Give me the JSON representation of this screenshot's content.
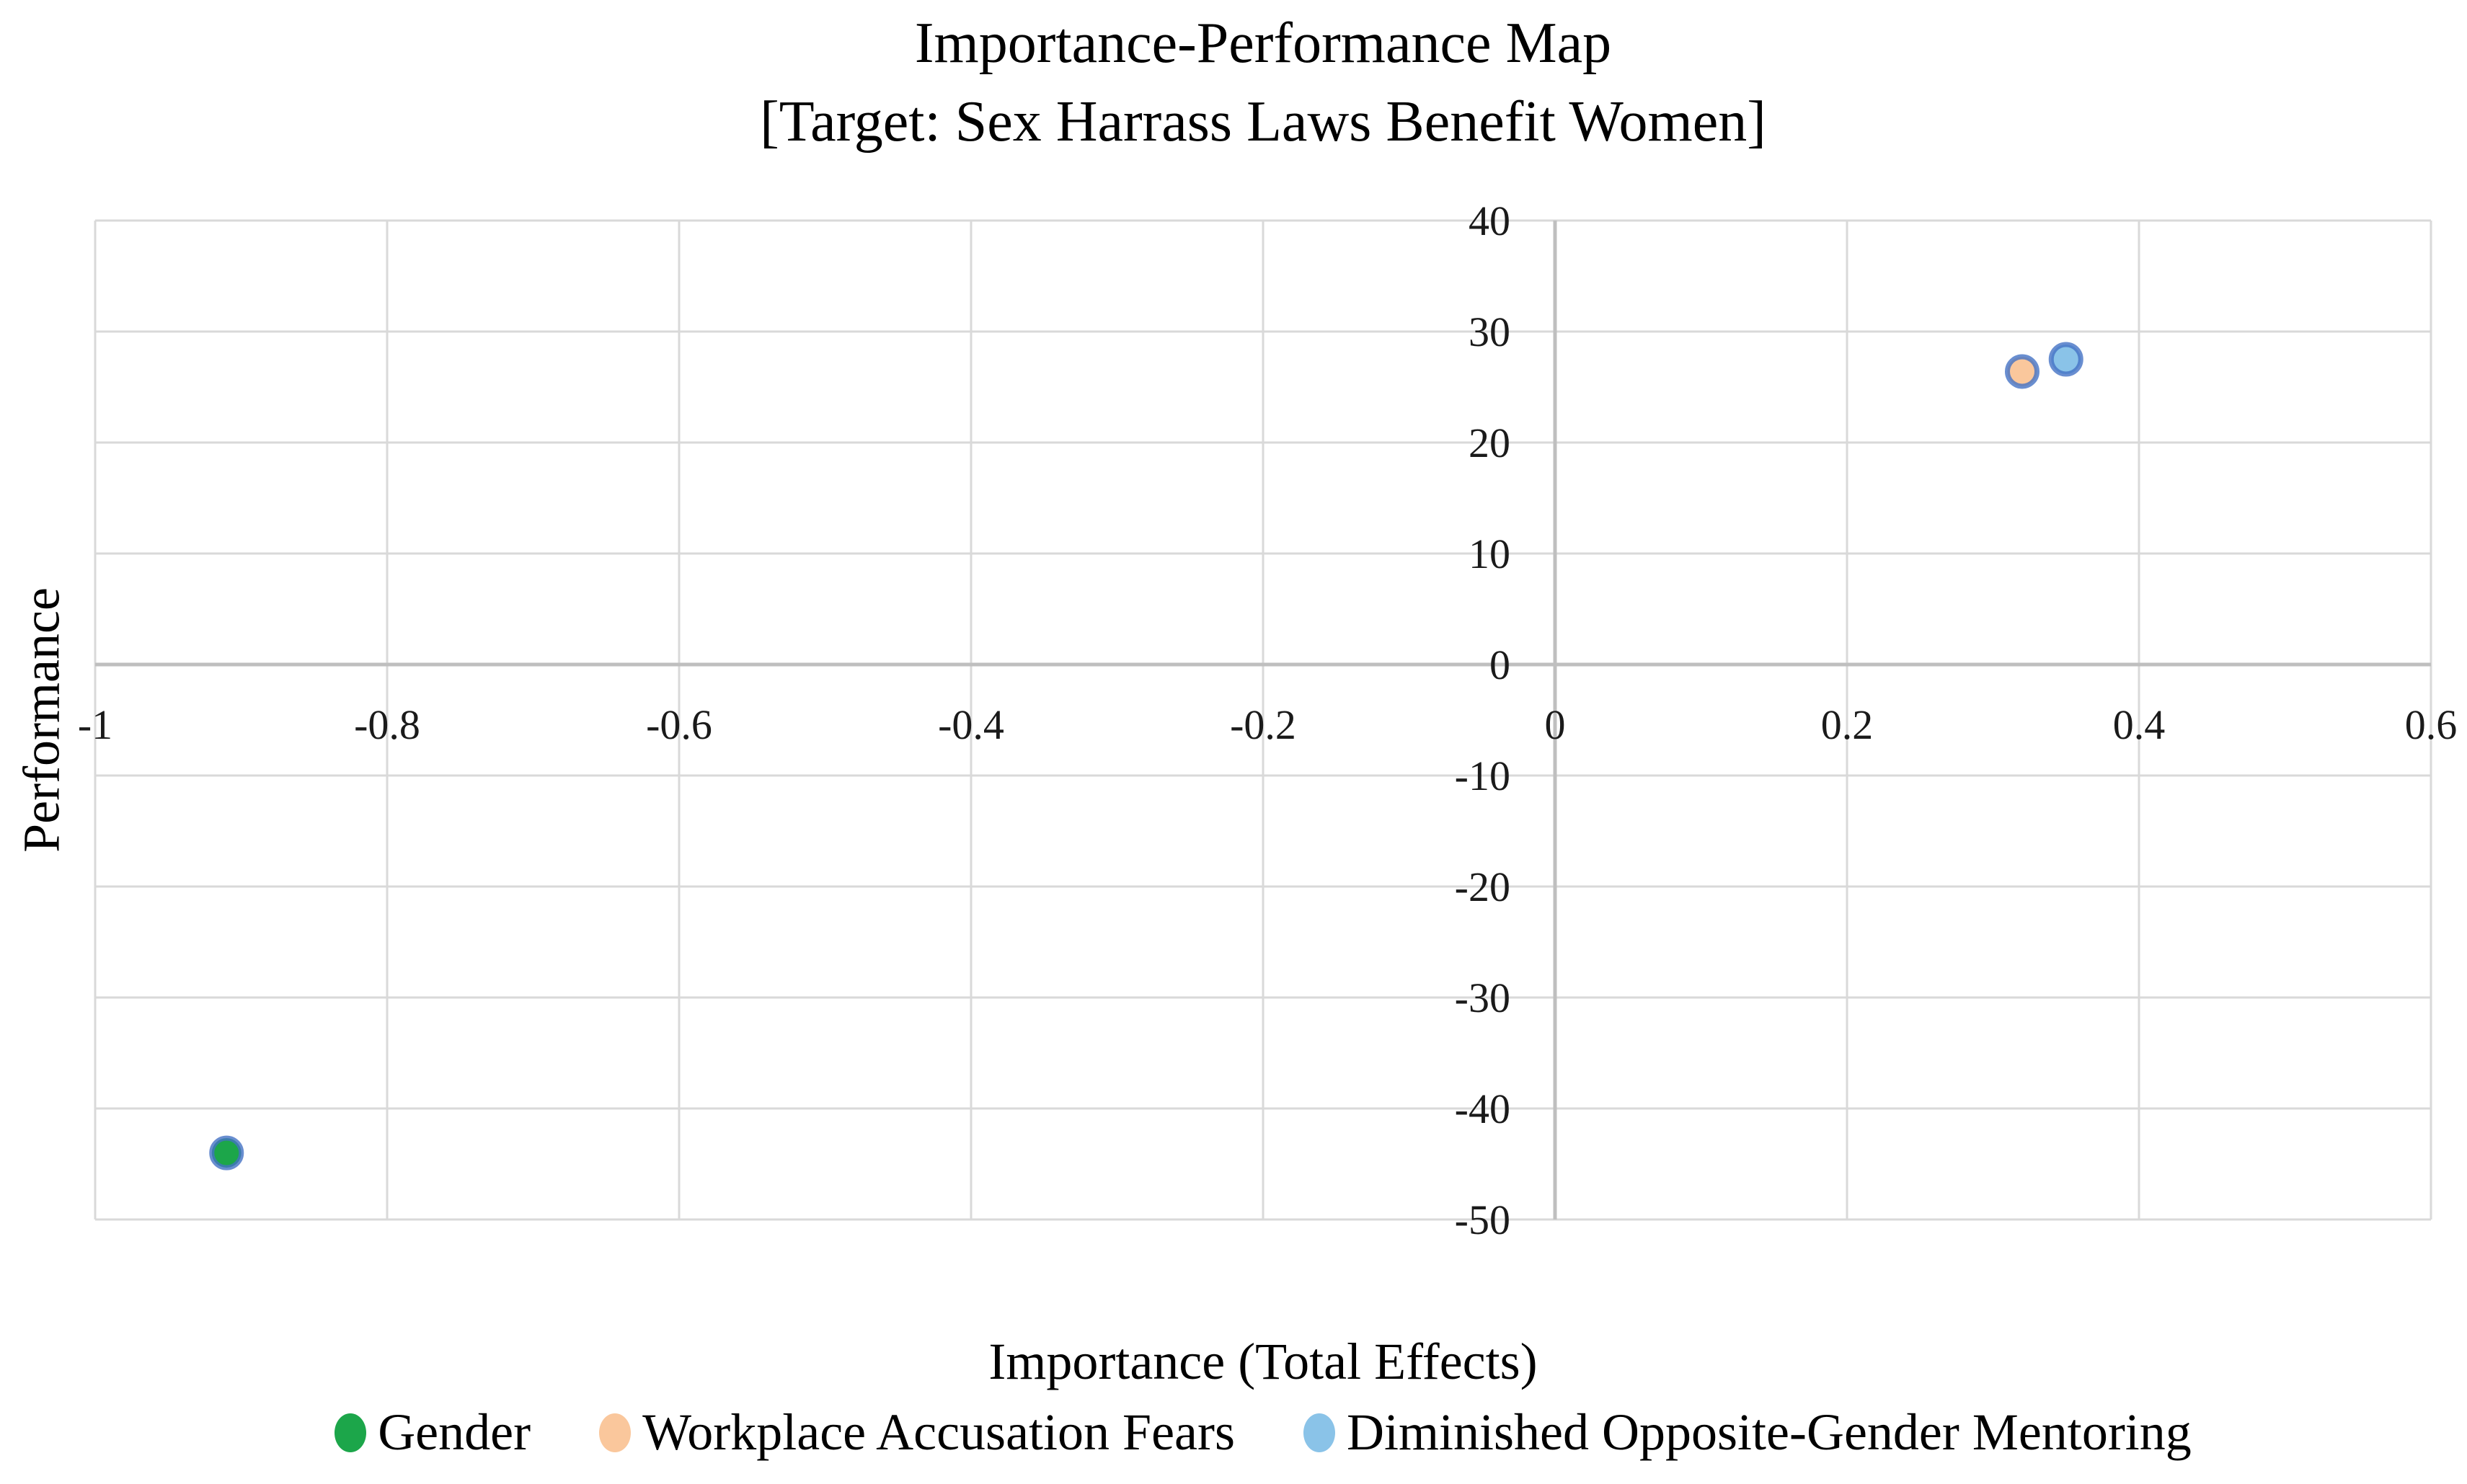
{
  "chart_data": {
    "type": "scatter",
    "title": "Importance-Performance Map",
    "subtitle": "[Target: Sex Harrass Laws Benefit Women]",
    "xlabel": "Importance (Total Effects)",
    "ylabel": "Performance",
    "xlim": [
      -1,
      0.6
    ],
    "ylim": [
      -50,
      40
    ],
    "x_ticks": [
      -1,
      -0.8,
      -0.6,
      -0.4,
      -0.2,
      0,
      0.2,
      0.4,
      0.6
    ],
    "x_tick_labels": [
      "-1",
      "-0.8",
      "-0.6",
      "-0.4",
      "-0.2",
      "0",
      "0.2",
      "0.4",
      "0.6"
    ],
    "y_ticks": [
      40,
      30,
      20,
      10,
      0,
      -10,
      -20,
      -30,
      -40,
      -50
    ],
    "y_tick_labels": [
      "40",
      "30",
      "20",
      "10",
      "0",
      "-10",
      "-20",
      "-30",
      "-40",
      "-50"
    ],
    "grid": true,
    "legend_position": "bottom",
    "axis_cross": {
      "x": 0,
      "y": 0
    },
    "series": [
      {
        "name": "Gender",
        "marker_color": "#1CA64A",
        "marker_border": "#4472C4",
        "points": [
          {
            "x": -0.91,
            "y": -44
          }
        ]
      },
      {
        "name": "Workplace Accusation Fears",
        "marker_color": "#FAC79C",
        "marker_border": "#4472C4",
        "points": [
          {
            "x": 0.32,
            "y": 26.4
          }
        ]
      },
      {
        "name": "Diminished Opposite-Gender Mentoring",
        "marker_color": "#8AC3E8",
        "marker_border": "#4472C4",
        "points": [
          {
            "x": 0.35,
            "y": 27.5
          }
        ]
      }
    ],
    "colors": {
      "gridline": "#D9D9D9",
      "axis_line": "#BFBFBF",
      "text": "#1A1A1A"
    }
  }
}
